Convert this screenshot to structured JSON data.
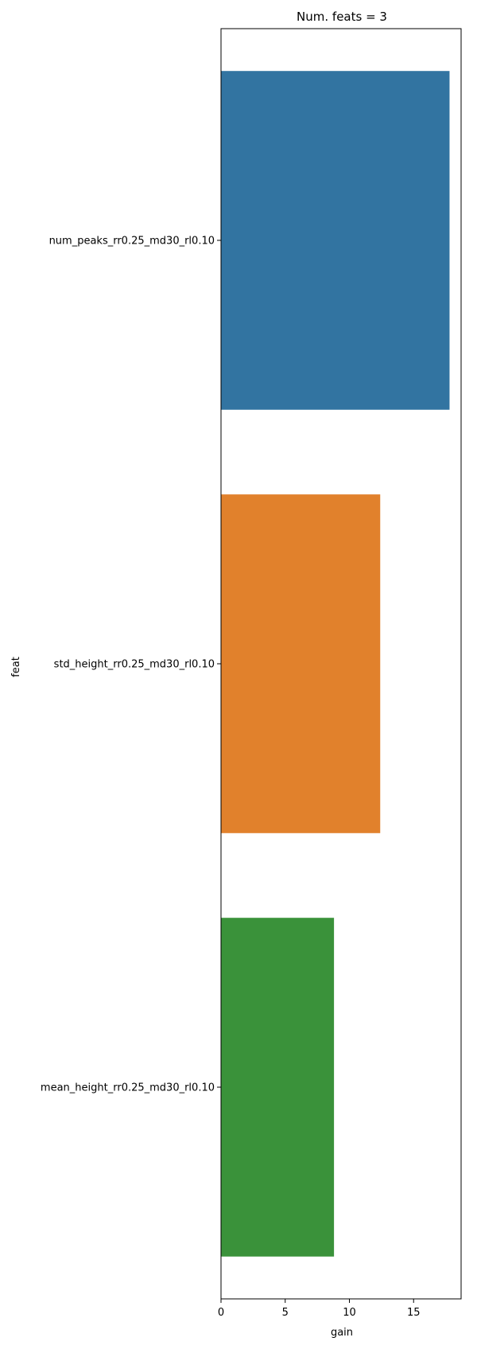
{
  "chart_data": {
    "type": "bar",
    "orientation": "horizontal",
    "title": "Num. feats = 3",
    "xlabel": "gain",
    "ylabel": "feat",
    "categories": [
      "num_peaks_rr0.25_md30_rl0.10",
      "std_height_rr0.25_md30_rl0.10",
      "mean_height_rr0.25_md30_rl0.10"
    ],
    "values": [
      17.8,
      12.4,
      8.8
    ],
    "colors": [
      "#3274a1",
      "#e1812c",
      "#3a923a"
    ],
    "xlim": [
      0,
      18.7
    ],
    "xticks": [
      0,
      5,
      10,
      15
    ],
    "grid": false,
    "legend": "none"
  }
}
